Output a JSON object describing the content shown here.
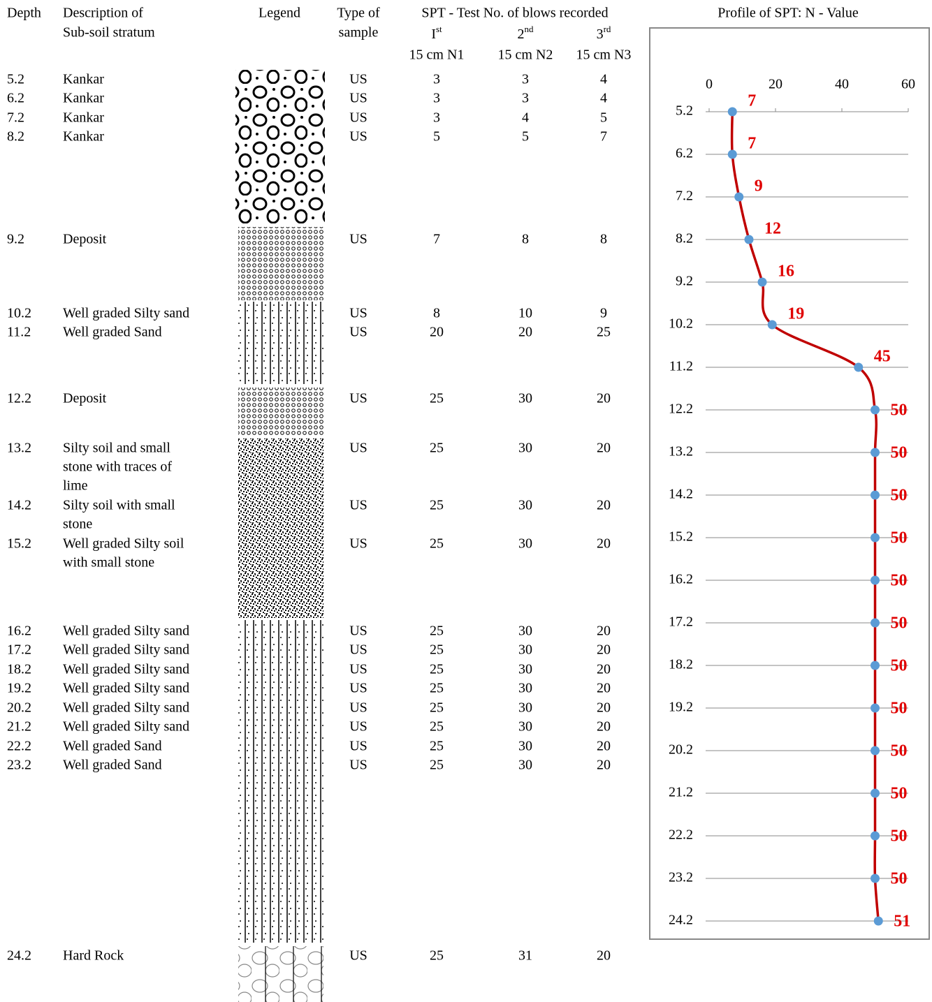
{
  "header": {
    "depth": "Depth",
    "description": [
      "Description of",
      "Sub-soil stratum"
    ],
    "legend": "Legend",
    "sample": [
      "Type of",
      "sample"
    ],
    "spt": "SPT - Test No. of blows recorded",
    "blows": [
      {
        "ordinal": "I",
        "suffix": "st",
        "label": "15 cm N1"
      },
      {
        "ordinal": "2",
        "suffix": "nd",
        "label": "15 cm N2"
      },
      {
        "ordinal": "3",
        "suffix": "rd",
        "label": "15 cm N3"
      }
    ]
  },
  "table": {
    "rows": [
      {
        "depth": "5.2",
        "description": [
          "Kankar"
        ],
        "sample": "US",
        "n": [
          3,
          3,
          4
        ]
      },
      {
        "depth": "6.2",
        "description": [
          "Kankar"
        ],
        "sample": "US",
        "n": [
          3,
          3,
          4
        ]
      },
      {
        "depth": "7.2",
        "description": [
          "Kankar"
        ],
        "sample": "US",
        "n": [
          3,
          4,
          5
        ]
      },
      {
        "depth": "8.2",
        "description": [
          "Kankar"
        ],
        "sample": "US",
        "n": [
          5,
          5,
          7
        ]
      },
      {
        "depth": "9.2",
        "description": [
          "Deposit"
        ],
        "sample": "US",
        "n": [
          7,
          8,
          8
        ]
      },
      {
        "depth": "10.2",
        "description": [
          "Well graded Silty sand"
        ],
        "sample": "US",
        "n": [
          8,
          10,
          9
        ]
      },
      {
        "depth": "11.2",
        "description": [
          "Well graded Sand"
        ],
        "sample": "US",
        "n": [
          20,
          20,
          25
        ]
      },
      {
        "depth": "12.2",
        "description": [
          "Deposit"
        ],
        "sample": "US",
        "n": [
          25,
          30,
          20
        ]
      },
      {
        "depth": "13.2",
        "description": [
          "Silty soil and small",
          "stone  with traces of",
          "lime"
        ],
        "sample": "US",
        "n": [
          25,
          30,
          20
        ]
      },
      {
        "depth": "14.2",
        "description": [
          "Silty soil with small",
          "stone"
        ],
        "sample": "US",
        "n": [
          25,
          30,
          20
        ]
      },
      {
        "depth": "15.2",
        "description": [
          "Well graded Silty soil",
          "with small stone"
        ],
        "sample": "US",
        "n": [
          25,
          30,
          20
        ]
      },
      {
        "depth": "16.2",
        "description": [
          "Well graded Silty sand"
        ],
        "sample": "US",
        "n": [
          25,
          30,
          20
        ]
      },
      {
        "depth": "17.2",
        "description": [
          "Well graded Silty sand"
        ],
        "sample": "US",
        "n": [
          25,
          30,
          20
        ]
      },
      {
        "depth": "18.2",
        "description": [
          "Well graded Silty sand"
        ],
        "sample": "US",
        "n": [
          25,
          30,
          20
        ]
      },
      {
        "depth": "19.2",
        "description": [
          "Well graded Silty sand"
        ],
        "sample": "US",
        "n": [
          25,
          30,
          20
        ]
      },
      {
        "depth": "20.2",
        "description": [
          "Well graded Silty sand"
        ],
        "sample": "US",
        "n": [
          25,
          30,
          20
        ]
      },
      {
        "depth": "21.2",
        "description": [
          "Well graded Silty sand"
        ],
        "sample": "US",
        "n": [
          25,
          30,
          20
        ]
      },
      {
        "depth": "22.2",
        "description": [
          "Well graded Sand"
        ],
        "sample": "US",
        "n": [
          25,
          30,
          20
        ]
      },
      {
        "depth": "23.2",
        "description": [
          "Well graded Sand"
        ],
        "sample": "US",
        "n": [
          25,
          30,
          20
        ]
      },
      {
        "depth": "24.2",
        "description": [
          "Hard Rock"
        ],
        "sample": "US",
        "n": [
          25,
          31,
          20
        ]
      }
    ]
  },
  "chart_data": {
    "type": "line",
    "title": "Profile of  SPT: N - Value",
    "categories": [
      "5.2",
      "6.2",
      "7.2",
      "8.2",
      "9.2",
      "10.2",
      "11.2",
      "12.2",
      "13.2",
      "14.2",
      "15.2",
      "16.2",
      "17.2",
      "18.2",
      "19.2",
      "20.2",
      "21.2",
      "22.2",
      "23.2",
      "24.2"
    ],
    "series": [
      {
        "color": "#c00000",
        "marker_color": "#5b9bd5",
        "values": [
          7,
          7,
          9,
          12,
          16,
          19,
          45,
          50,
          50,
          50,
          50,
          50,
          50,
          50,
          50,
          50,
          50,
          50,
          50,
          51
        ]
      }
    ],
    "xlim": [
      0,
      60
    ],
    "xticks": [
      0,
      20,
      40,
      60
    ],
    "grid": true
  }
}
